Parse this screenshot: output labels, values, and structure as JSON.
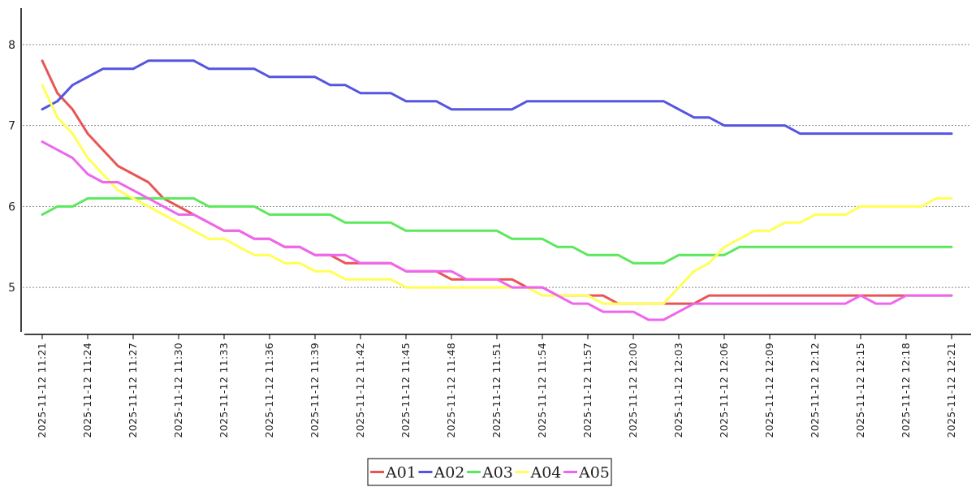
{
  "chart_data": {
    "type": "line",
    "title": "",
    "xlabel": "",
    "ylabel": "",
    "ylim": [
      4.45,
      8.45
    ],
    "yticks": [
      5,
      6,
      7,
      8
    ],
    "grid": "horizontal-dashed",
    "legend_position": "bottom-center",
    "x_start": "2025-11-12 11:21",
    "x_end": "2025-11-12 12:21",
    "xticks": [
      "2025-11-12 11:21",
      "2025-11-12 11:24",
      "2025-11-12 11:27",
      "2025-11-12 11:30",
      "2025-11-12 11:33",
      "2025-11-12 11:36",
      "2025-11-12 11:39",
      "2025-11-12 11:42",
      "2025-11-12 11:45",
      "2025-11-12 11:48",
      "2025-11-12 11:51",
      "2025-11-12 11:54",
      "2025-11-12 11:57",
      "2025-11-12 12:00",
      "2025-11-12 12:03",
      "2025-11-12 12:06",
      "2025-11-12 12:09",
      "2025-11-12 12:12",
      "2025-11-12 12:15",
      "2025-11-12 12:18",
      "2025-11-12 12:21"
    ],
    "series": [
      {
        "name": "A01",
        "color": "#e85555",
        "values": [
          7.8,
          7.4,
          7.2,
          6.9,
          6.7,
          6.5,
          6.4,
          6.3,
          6.1,
          6.0,
          5.9,
          5.8,
          5.7,
          5.7,
          5.6,
          5.6,
          5.5,
          5.5,
          5.4,
          5.4,
          5.3,
          5.3,
          5.3,
          5.3,
          5.2,
          5.2,
          5.2,
          5.1,
          5.1,
          5.1,
          5.1,
          5.1,
          5.0,
          5.0,
          4.9,
          4.9,
          4.9,
          4.9,
          4.8,
          4.8,
          4.8,
          4.8,
          4.8,
          4.8,
          4.9,
          4.9,
          4.9,
          4.9,
          4.9,
          4.9,
          4.9,
          4.9,
          4.9,
          4.9,
          4.9,
          4.9,
          4.9,
          4.9,
          4.9,
          4.9,
          4.9
        ]
      },
      {
        "name": "A02",
        "color": "#5555e0",
        "values": [
          7.2,
          7.3,
          7.5,
          7.6,
          7.7,
          7.7,
          7.7,
          7.8,
          7.8,
          7.8,
          7.8,
          7.7,
          7.7,
          7.7,
          7.7,
          7.6,
          7.6,
          7.6,
          7.6,
          7.5,
          7.5,
          7.4,
          7.4,
          7.4,
          7.3,
          7.3,
          7.3,
          7.2,
          7.2,
          7.2,
          7.2,
          7.2,
          7.3,
          7.3,
          7.3,
          7.3,
          7.3,
          7.3,
          7.3,
          7.3,
          7.3,
          7.3,
          7.2,
          7.1,
          7.1,
          7.0,
          7.0,
          7.0,
          7.0,
          7.0,
          6.9,
          6.9,
          6.9,
          6.9,
          6.9,
          6.9,
          6.9,
          6.9,
          6.9,
          6.9,
          6.9
        ]
      },
      {
        "name": "A03",
        "color": "#5ce85c",
        "values": [
          5.9,
          6.0,
          6.0,
          6.1,
          6.1,
          6.1,
          6.1,
          6.1,
          6.1,
          6.1,
          6.1,
          6.0,
          6.0,
          6.0,
          6.0,
          5.9,
          5.9,
          5.9,
          5.9,
          5.9,
          5.8,
          5.8,
          5.8,
          5.8,
          5.7,
          5.7,
          5.7,
          5.7,
          5.7,
          5.7,
          5.7,
          5.6,
          5.6,
          5.6,
          5.5,
          5.5,
          5.4,
          5.4,
          5.4,
          5.3,
          5.3,
          5.3,
          5.4,
          5.4,
          5.4,
          5.4,
          5.5,
          5.5,
          5.5,
          5.5,
          5.5,
          5.5,
          5.5,
          5.5,
          5.5,
          5.5,
          5.5,
          5.5,
          5.5,
          5.5,
          5.5
        ]
      },
      {
        "name": "A04",
        "color": "#ffff55",
        "values": [
          7.5,
          7.1,
          6.9,
          6.6,
          6.4,
          6.2,
          6.1,
          6.0,
          5.9,
          5.8,
          5.7,
          5.6,
          5.6,
          5.5,
          5.4,
          5.4,
          5.3,
          5.3,
          5.2,
          5.2,
          5.1,
          5.1,
          5.1,
          5.1,
          5.0,
          5.0,
          5.0,
          5.0,
          5.0,
          5.0,
          5.0,
          5.0,
          5.0,
          4.9,
          4.9,
          4.9,
          4.9,
          4.8,
          4.8,
          4.8,
          4.8,
          4.8,
          5.0,
          5.2,
          5.3,
          5.5,
          5.6,
          5.7,
          5.7,
          5.8,
          5.8,
          5.9,
          5.9,
          5.9,
          6.0,
          6.0,
          6.0,
          6.0,
          6.0,
          6.1,
          6.1
        ]
      },
      {
        "name": "A05",
        "color": "#ee66ee",
        "values": [
          6.8,
          6.7,
          6.6,
          6.4,
          6.3,
          6.3,
          6.2,
          6.1,
          6.0,
          5.9,
          5.9,
          5.8,
          5.7,
          5.7,
          5.6,
          5.6,
          5.5,
          5.5,
          5.4,
          5.4,
          5.4,
          5.3,
          5.3,
          5.3,
          5.2,
          5.2,
          5.2,
          5.2,
          5.1,
          5.1,
          5.1,
          5.0,
          5.0,
          5.0,
          4.9,
          4.8,
          4.8,
          4.7,
          4.7,
          4.7,
          4.6,
          4.6,
          4.7,
          4.8,
          4.8,
          4.8,
          4.8,
          4.8,
          4.8,
          4.8,
          4.8,
          4.8,
          4.8,
          4.8,
          4.9,
          4.8,
          4.8,
          4.9,
          4.9,
          4.9,
          4.9
        ]
      }
    ]
  }
}
